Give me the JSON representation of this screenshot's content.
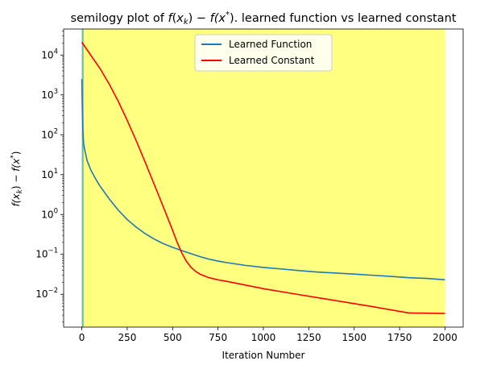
{
  "chart_data": {
    "type": "line",
    "title": "semilogy plot of f(x_k) − f(x*).  learned function vs learned constant",
    "title_parts": {
      "prefix": "semilogy plot of ",
      "f1": "f",
      "x1": "x",
      "sub1": "k",
      "mid": ") − ",
      "f2": "f",
      "x2": "(x",
      "sup2": "*",
      "suffix": ").  learned function vs learned constant"
    },
    "xlabel": "Iteration Number",
    "ylabel": "f(x_k) − f(x*)",
    "ylabel_parts": {
      "f1": "f",
      "x1": "(x",
      "sub1": "k",
      "mid": ") − ",
      "f2": "f",
      "x2": "(x",
      "sup2": "*",
      "end": ")"
    },
    "xscale": "linear",
    "yscale": "log",
    "xlim": [
      -100,
      2100
    ],
    "ylim": [
      0.0015,
      45000
    ],
    "xticks": [
      0,
      250,
      500,
      750,
      1000,
      1250,
      1500,
      1750,
      2000
    ],
    "xtick_labels": [
      "0",
      "250",
      "500",
      "750",
      "1000",
      "1250",
      "1500",
      "1750",
      "2000"
    ],
    "yticks": [
      0.01,
      0.1,
      1,
      10,
      100,
      1000,
      10000
    ],
    "ytick_labels": [
      {
        "base": "10",
        "exp": "−2"
      },
      {
        "base": "10",
        "exp": "−1"
      },
      {
        "base": "10",
        "exp": "0"
      },
      {
        "base": "10",
        "exp": "1"
      },
      {
        "base": "10",
        "exp": "2"
      },
      {
        "base": "10",
        "exp": "3"
      },
      {
        "base": "10",
        "exp": "4"
      }
    ],
    "grid": false,
    "legend_position": "top-center",
    "shaded_region": {
      "x0": 10,
      "x1": 2000,
      "color": "#ffff80"
    },
    "vertical_band": {
      "x0": 0,
      "x1": 10,
      "color": "#6fbf9f"
    },
    "series": [
      {
        "name": "Learned Function",
        "color": "#1f77b4",
        "x": [
          0,
          3,
          6,
          10,
          15,
          20,
          30,
          50,
          75,
          100,
          150,
          200,
          250,
          300,
          350,
          400,
          450,
          500,
          550,
          600,
          650,
          700,
          750,
          800,
          900,
          1000,
          1100,
          1200,
          1300,
          1400,
          1500,
          1600,
          1700,
          1800,
          1900,
          2000
        ],
        "y": [
          2500,
          400,
          130,
          60,
          45,
          35,
          22,
          13,
          8,
          5.2,
          2.5,
          1.3,
          0.75,
          0.48,
          0.33,
          0.24,
          0.185,
          0.15,
          0.125,
          0.105,
          0.088,
          0.076,
          0.068,
          0.062,
          0.053,
          0.047,
          0.043,
          0.039,
          0.036,
          0.034,
          0.032,
          0.03,
          0.028,
          0.026,
          0.025,
          0.023
        ]
      },
      {
        "name": "Learned Constant",
        "color": "#ff0000",
        "x": [
          0,
          50,
          100,
          150,
          200,
          250,
          300,
          350,
          400,
          450,
          500,
          525,
          550,
          575,
          600,
          625,
          650,
          700,
          750,
          800,
          900,
          1000,
          1200,
          1400,
          1600,
          1800,
          2000
        ],
        "y": [
          21000,
          9800,
          4600,
          1900,
          700,
          230,
          70,
          20,
          5.5,
          1.5,
          0.4,
          0.2,
          0.11,
          0.068,
          0.048,
          0.038,
          0.032,
          0.026,
          0.023,
          0.021,
          0.017,
          0.0138,
          0.0097,
          0.0069,
          0.0049,
          0.0034,
          0.0033
        ]
      }
    ]
  }
}
